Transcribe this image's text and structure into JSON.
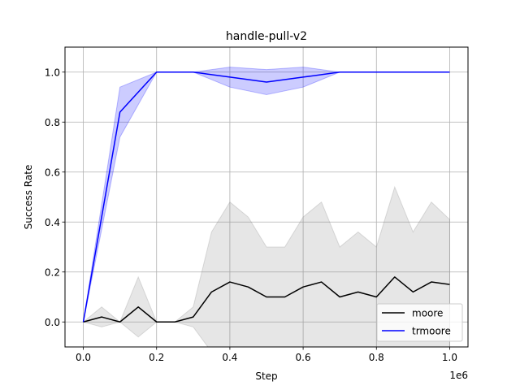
{
  "chart_data": {
    "type": "line",
    "title": "handle-pull-v2",
    "xlabel": "Step",
    "ylabel": "Success Rate",
    "x_offset_label": "1e6",
    "xlim": [
      -0.05,
      1.05
    ],
    "ylim": [
      -0.1,
      1.1
    ],
    "x_ticks": [
      0.0,
      0.2,
      0.4,
      0.6,
      0.8,
      1.0
    ],
    "x_tick_labels": [
      "0.0",
      "0.2",
      "0.4",
      "0.6",
      "0.8",
      "1.0"
    ],
    "y_ticks": [
      0.0,
      0.2,
      0.4,
      0.6,
      0.8,
      1.0
    ],
    "y_tick_labels": [
      "0.0",
      "0.2",
      "0.4",
      "0.6",
      "0.8",
      "1.0"
    ],
    "grid": true,
    "legend_position": "lower right",
    "series": [
      {
        "name": "moore",
        "color": "#000000",
        "band_color": "#808080",
        "x": [
          0.0,
          0.05,
          0.1,
          0.15,
          0.2,
          0.25,
          0.3,
          0.35,
          0.4,
          0.45,
          0.5,
          0.55,
          0.6,
          0.65,
          0.7,
          0.75,
          0.8,
          0.85,
          0.9,
          0.95,
          1.0
        ],
        "values": [
          0.0,
          0.02,
          0.0,
          0.06,
          0.0,
          0.0,
          0.02,
          0.12,
          0.16,
          0.14,
          0.1,
          0.1,
          0.14,
          0.16,
          0.1,
          0.12,
          0.1,
          0.18,
          0.12,
          0.16,
          0.15
        ],
        "upper": [
          0.0,
          0.06,
          0.0,
          0.18,
          0.0,
          0.0,
          0.06,
          0.36,
          0.48,
          0.42,
          0.3,
          0.3,
          0.42,
          0.48,
          0.3,
          0.36,
          0.3,
          0.54,
          0.36,
          0.48,
          0.41
        ],
        "lower": [
          0.0,
          -0.02,
          0.0,
          -0.06,
          0.0,
          0.0,
          -0.02,
          -0.12,
          -0.16,
          -0.14,
          -0.1,
          -0.1,
          -0.14,
          -0.16,
          -0.1,
          -0.12,
          -0.1,
          -0.18,
          -0.12,
          -0.16,
          -0.11
        ]
      },
      {
        "name": "trmoore",
        "color": "#0000ff",
        "band_color": "#0000ff",
        "x": [
          0.0,
          0.1,
          0.2,
          0.3,
          0.4,
          0.5,
          0.6,
          0.7,
          0.8,
          0.9,
          1.0
        ],
        "values": [
          0.0,
          0.84,
          1.0,
          1.0,
          0.98,
          0.96,
          0.98,
          1.0,
          1.0,
          1.0,
          1.0
        ],
        "upper": [
          0.0,
          0.94,
          1.0,
          1.0,
          1.02,
          1.01,
          1.02,
          1.0,
          1.0,
          1.0,
          1.0
        ],
        "lower": [
          0.0,
          0.74,
          1.0,
          1.0,
          0.94,
          0.91,
          0.94,
          1.0,
          1.0,
          1.0,
          1.0
        ]
      }
    ]
  }
}
